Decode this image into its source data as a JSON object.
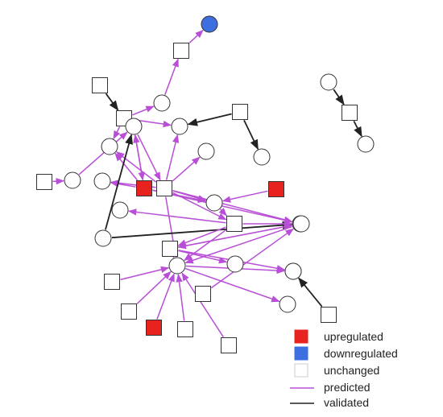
{
  "colors": {
    "upregulated": "#e8231f",
    "downregulated": "#3e6fe0",
    "unchanged": "#ffffff",
    "node_stroke": "#333333",
    "predicted": "#b84fd6",
    "validated": "#222222"
  },
  "legend": {
    "upregulated": "upregulated",
    "downregulated": "downregulated",
    "unchanged": "unchanged",
    "predicted": "predicted",
    "validated": "validated"
  },
  "network": {
    "nodes": [
      {
        "id": "n1",
        "shape": "circle",
        "status": "downregulated"
      },
      {
        "id": "n2",
        "shape": "square",
        "status": "unchanged"
      },
      {
        "id": "n3",
        "shape": "square",
        "status": "unchanged"
      },
      {
        "id": "n4",
        "shape": "circle",
        "status": "unchanged"
      },
      {
        "id": "n5",
        "shape": "square",
        "status": "unchanged"
      },
      {
        "id": "n6",
        "shape": "circle",
        "status": "unchanged"
      },
      {
        "id": "n7",
        "shape": "square",
        "status": "unchanged"
      },
      {
        "id": "n8",
        "shape": "circle",
        "status": "unchanged"
      },
      {
        "id": "n9",
        "shape": "circle",
        "status": "unchanged"
      },
      {
        "id": "n10",
        "shape": "circle",
        "status": "unchanged"
      },
      {
        "id": "n11",
        "shape": "circle",
        "status": "unchanged"
      },
      {
        "id": "n12",
        "shape": "square",
        "status": "unchanged"
      },
      {
        "id": "n13",
        "shape": "circle",
        "status": "unchanged"
      },
      {
        "id": "n14",
        "shape": "circle",
        "status": "unchanged"
      },
      {
        "id": "n15",
        "shape": "square",
        "status": "upregulated"
      },
      {
        "id": "n16",
        "shape": "square",
        "status": "unchanged"
      },
      {
        "id": "n17",
        "shape": "square",
        "status": "upregulated"
      },
      {
        "id": "n18",
        "shape": "circle",
        "status": "unchanged"
      },
      {
        "id": "n19",
        "shape": "circle",
        "status": "unchanged"
      },
      {
        "id": "n20",
        "shape": "circle",
        "status": "unchanged"
      },
      {
        "id": "n21",
        "shape": "square",
        "status": "unchanged"
      },
      {
        "id": "n22",
        "shape": "circle",
        "status": "unchanged"
      },
      {
        "id": "n23",
        "shape": "square",
        "status": "unchanged"
      },
      {
        "id": "n24",
        "shape": "circle",
        "status": "unchanged"
      },
      {
        "id": "n25",
        "shape": "circle",
        "status": "unchanged"
      },
      {
        "id": "n26",
        "shape": "circle",
        "status": "unchanged"
      },
      {
        "id": "n27",
        "shape": "circle",
        "status": "unchanged"
      },
      {
        "id": "n28",
        "shape": "square",
        "status": "unchanged"
      },
      {
        "id": "n29",
        "shape": "square",
        "status": "unchanged"
      },
      {
        "id": "n30",
        "shape": "circle",
        "status": "unchanged"
      },
      {
        "id": "n31",
        "shape": "square",
        "status": "unchanged"
      },
      {
        "id": "n32",
        "shape": "square",
        "status": "unchanged"
      },
      {
        "id": "n33",
        "shape": "square",
        "status": "upregulated"
      },
      {
        "id": "n34",
        "shape": "square",
        "status": "unchanged"
      },
      {
        "id": "n35",
        "shape": "square",
        "status": "unchanged"
      },
      {
        "id": "n36",
        "shape": "circle",
        "status": "unchanged"
      },
      {
        "id": "n37",
        "shape": "circle",
        "status": "unchanged"
      },
      {
        "id": "n38",
        "shape": "square",
        "status": "unchanged"
      },
      {
        "id": "n39",
        "shape": "circle",
        "status": "unchanged"
      }
    ],
    "edges": [
      {
        "from": "n2",
        "to": "n1",
        "type": "predicted"
      },
      {
        "from": "n4",
        "to": "n2",
        "type": "predicted"
      },
      {
        "from": "n3",
        "to": "n5",
        "type": "validated"
      },
      {
        "from": "n5",
        "to": "n4",
        "type": "predicted"
      },
      {
        "from": "n7",
        "to": "n6",
        "type": "validated"
      },
      {
        "from": "n7",
        "to": "n8",
        "type": "validated"
      },
      {
        "from": "n5",
        "to": "n6",
        "type": "predicted"
      },
      {
        "from": "n5",
        "to": "n9",
        "type": "predicted"
      },
      {
        "from": "n5",
        "to": "n10",
        "type": "predicted"
      },
      {
        "from": "n12",
        "to": "n13",
        "type": "predicted"
      },
      {
        "from": "n13",
        "to": "n10",
        "type": "predicted"
      },
      {
        "from": "n10",
        "to": "n5",
        "type": "predicted"
      },
      {
        "from": "n16",
        "to": "n6",
        "type": "predicted"
      },
      {
        "from": "n16",
        "to": "n9",
        "type": "predicted"
      },
      {
        "from": "n16",
        "to": "n11",
        "type": "predicted"
      },
      {
        "from": "n16",
        "to": "n14",
        "type": "predicted"
      },
      {
        "from": "n16",
        "to": "n18",
        "type": "predicted"
      },
      {
        "from": "n16",
        "to": "n21",
        "type": "predicted"
      },
      {
        "from": "n16",
        "to": "n22",
        "type": "predicted"
      },
      {
        "from": "n16",
        "to": "n24",
        "type": "predicted"
      },
      {
        "from": "n15",
        "to": "n9",
        "type": "predicted"
      },
      {
        "from": "n15",
        "to": "n10",
        "type": "predicted"
      },
      {
        "from": "n15",
        "to": "n14",
        "type": "predicted"
      },
      {
        "from": "n15",
        "to": "n18",
        "type": "predicted"
      },
      {
        "from": "n15",
        "to": "n22",
        "type": "predicted"
      },
      {
        "from": "n17",
        "to": "n18",
        "type": "predicted"
      },
      {
        "from": "n10",
        "to": "n15",
        "type": "predicted"
      },
      {
        "from": "n10",
        "to": "n16",
        "type": "predicted"
      },
      {
        "from": "n20",
        "to": "n10",
        "type": "validated"
      },
      {
        "from": "n20",
        "to": "n22",
        "type": "validated"
      },
      {
        "from": "n18",
        "to": "n21",
        "type": "predicted"
      },
      {
        "from": "n21",
        "to": "n19",
        "type": "predicted"
      },
      {
        "from": "n21",
        "to": "n22",
        "type": "predicted"
      },
      {
        "from": "n21",
        "to": "n23",
        "type": "predicted"
      },
      {
        "from": "n21",
        "to": "n24",
        "type": "predicted"
      },
      {
        "from": "n23",
        "to": "n24",
        "type": "predicted"
      },
      {
        "from": "n23",
        "to": "n22",
        "type": "predicted"
      },
      {
        "from": "n23",
        "to": "n25",
        "type": "predicted"
      },
      {
        "from": "n23",
        "to": "n26",
        "type": "predicted"
      },
      {
        "from": "n22",
        "to": "n23",
        "type": "predicted"
      },
      {
        "from": "n24",
        "to": "n26",
        "type": "predicted"
      },
      {
        "from": "n24",
        "to": "n30",
        "type": "predicted"
      },
      {
        "from": "n22",
        "to": "n24",
        "type": "predicted"
      },
      {
        "from": "n28",
        "to": "n24",
        "type": "predicted"
      },
      {
        "from": "n33",
        "to": "n24",
        "type": "predicted"
      },
      {
        "from": "n34",
        "to": "n24",
        "type": "predicted"
      },
      {
        "from": "n29",
        "to": "n22",
        "type": "predicted"
      },
      {
        "from": "n32",
        "to": "n24",
        "type": "predicted"
      },
      {
        "from": "n35",
        "to": "n24",
        "type": "predicted"
      },
      {
        "from": "n31",
        "to": "n26",
        "type": "validated"
      },
      {
        "from": "n36",
        "to": "n38",
        "type": "validated"
      },
      {
        "from": "n38",
        "to": "n37",
        "type": "validated"
      }
    ]
  }
}
